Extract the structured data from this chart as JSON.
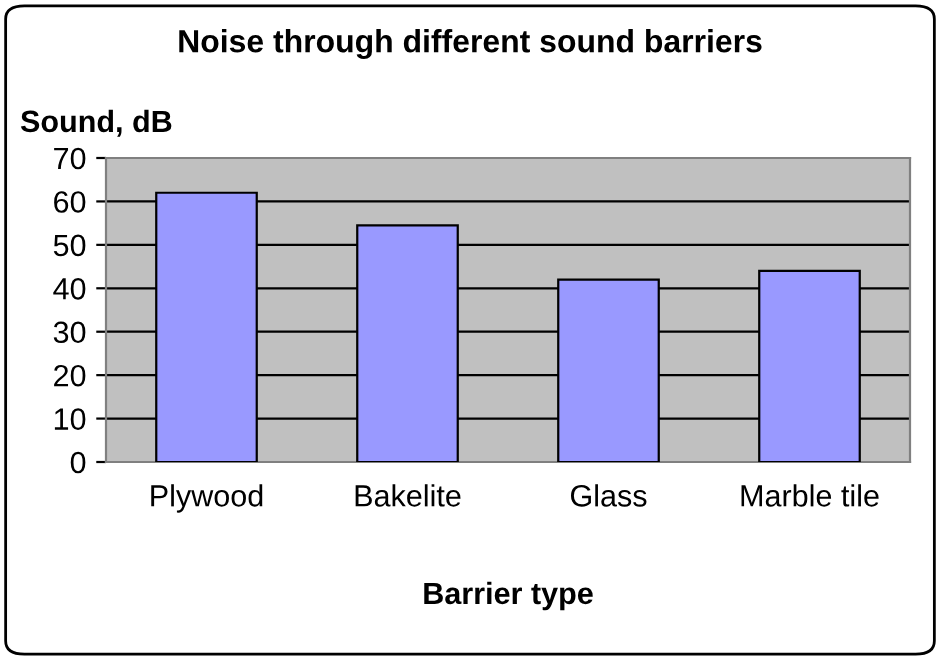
{
  "chart_data": {
    "type": "bar",
    "title": "Noise through different sound barriers",
    "xlabel": "Barrier type",
    "ylabel": "Sound, dB",
    "categories": [
      "Plywood",
      "Bakelite",
      "Glass",
      "Marble tile"
    ],
    "values": [
      62,
      54.5,
      42,
      44
    ],
    "color": "#9999ff",
    "ylim": [
      0,
      70
    ],
    "yticks": [
      0,
      10,
      20,
      30,
      40,
      50,
      60,
      70
    ],
    "grid": "y",
    "legend": false
  }
}
